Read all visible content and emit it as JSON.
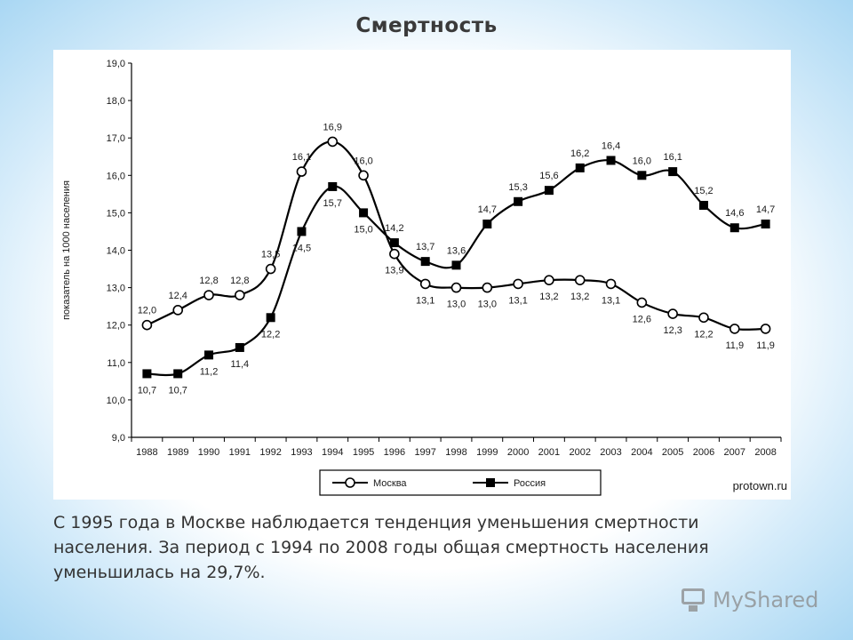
{
  "slide": {
    "title": "Смертность",
    "caption": "С 1995 года в Москве наблюдается тенденция уменьшения смертности населения. За период с 1994 по 2008 годы общая смертность населения уменьшилась на 29,7%.",
    "watermark": "MyShared"
  },
  "chart_data": {
    "type": "line",
    "ylabel": "показатель на 1000 населения",
    "ylim": [
      9.0,
      19.0
    ],
    "yticks": [
      "9,0",
      "10,0",
      "11,0",
      "12,0",
      "13,0",
      "14,0",
      "15,0",
      "16,0",
      "17,0",
      "18,0",
      "19,0"
    ],
    "x": [
      "1988",
      "1989",
      "1990",
      "1991",
      "1992",
      "1993",
      "1994",
      "1995",
      "1996",
      "1997",
      "1998",
      "1999",
      "2000",
      "2001",
      "2002",
      "2003",
      "2004",
      "2005",
      "2006",
      "2007",
      "2008"
    ],
    "series": [
      {
        "name": "Москва",
        "marker": "circle-open",
        "values": [
          12.0,
          12.4,
          12.8,
          12.8,
          13.5,
          16.1,
          16.9,
          16.0,
          13.9,
          13.1,
          13.0,
          13.0,
          13.1,
          13.2,
          13.2,
          13.1,
          12.6,
          12.3,
          12.2,
          11.9,
          11.9
        ],
        "labels": [
          "12,0",
          "12,4",
          "12,8",
          "12,8",
          "13,5",
          "16,1",
          "16,9",
          "16,0",
          "13,9",
          "13,1",
          "13,0",
          "13,0",
          "13,1",
          "13,2",
          "13,2",
          "13,1",
          "12,6",
          "12,3",
          "12,2",
          "11,9",
          "11,9"
        ]
      },
      {
        "name": "Россия",
        "marker": "square-filled",
        "values": [
          10.7,
          10.7,
          11.2,
          11.4,
          12.2,
          14.5,
          15.7,
          15.0,
          14.2,
          13.7,
          13.6,
          14.7,
          15.3,
          15.6,
          16.2,
          16.4,
          16.0,
          16.1,
          15.2,
          14.6,
          14.7
        ],
        "labels": [
          "10,7",
          "10,7",
          "11,2",
          "11,4",
          "12,2",
          "14,5",
          "15,7",
          "15,0",
          "14,2",
          "13,7",
          "13,6",
          "14,7",
          "15,3",
          "15,6",
          "16,2",
          "16,4",
          "16,0",
          "16,1",
          "15,2",
          "14,6",
          "14,7"
        ]
      }
    ],
    "legend_position": "bottom",
    "source": "protown.ru",
    "grid": false
  }
}
